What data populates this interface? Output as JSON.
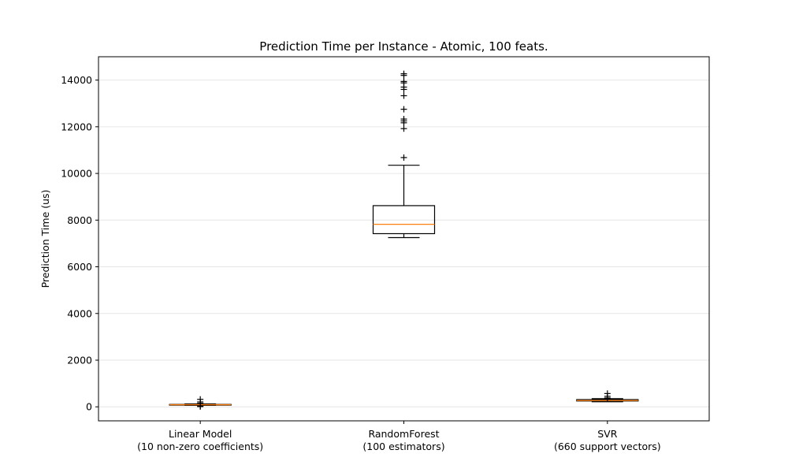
{
  "chart_data": {
    "type": "box",
    "title": "Prediction Time per Instance - Atomic, 100 feats.",
    "xlabel": "",
    "ylabel": "Prediction Time (us)",
    "ylim": [
      -600,
      15000
    ],
    "yticks": [
      0,
      2000,
      4000,
      6000,
      8000,
      10000,
      12000,
      14000
    ],
    "grid": "y",
    "colors": {
      "box": "#000000",
      "median": "#ff7f0e",
      "grid": "#e6e6e6",
      "flier": "#000000"
    },
    "boxes": [
      {
        "label_line1": "Linear Model",
        "label_line2": "(10 non-zero coefficients)",
        "whisker_low": 60,
        "q1": 75,
        "median": 90,
        "q3": 105,
        "whisker_high": 125,
        "fliers": [
          10,
          40,
          150,
          210,
          320
        ]
      },
      {
        "label_line1": "RandomForest",
        "label_line2": "(100 estimators)",
        "whisker_low": 7250,
        "q1": 7420,
        "median": 7820,
        "q3": 8620,
        "whisker_high": 10350,
        "fliers": [
          10680,
          11920,
          12170,
          12250,
          12330,
          12750,
          13330,
          13600,
          13700,
          13880,
          13940,
          14200,
          14270
        ]
      },
      {
        "label_line1": "SVR",
        "label_line2": "(660 support vectors)",
        "whisker_low": 220,
        "q1": 250,
        "median": 270,
        "q3": 310,
        "whisker_high": 350,
        "fliers": [
          380,
          450,
          570
        ]
      }
    ]
  }
}
